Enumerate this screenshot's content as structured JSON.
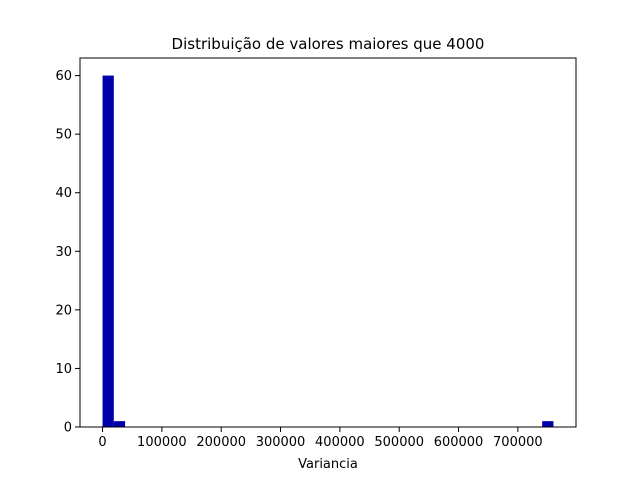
{
  "chart_data": {
    "type": "bar",
    "title": "Distribuição de valores maiores que 4000",
    "xlabel": "Variancia",
    "ylabel": "",
    "bars": [
      {
        "x0": 0,
        "x1": 19000,
        "value": 60
      },
      {
        "x0": 19000,
        "x1": 38000,
        "value": 1
      },
      {
        "x0": 741000,
        "x1": 760000,
        "value": 1
      }
    ],
    "xlim": [
      -38000,
      798000
    ],
    "ylim": [
      0,
      63
    ],
    "xticks": [
      0,
      100000,
      200000,
      300000,
      400000,
      500000,
      600000,
      700000
    ],
    "xtick_labels": [
      "0",
      "100000",
      "200000",
      "300000",
      "400000",
      "500000",
      "600000",
      "700000"
    ],
    "yticks": [
      0,
      10,
      20,
      30,
      40,
      50,
      60
    ],
    "ytick_labels": [
      "0",
      "10",
      "20",
      "30",
      "40",
      "50",
      "60"
    ],
    "bar_color": "#0000aa",
    "grid": false,
    "legend": "none"
  }
}
